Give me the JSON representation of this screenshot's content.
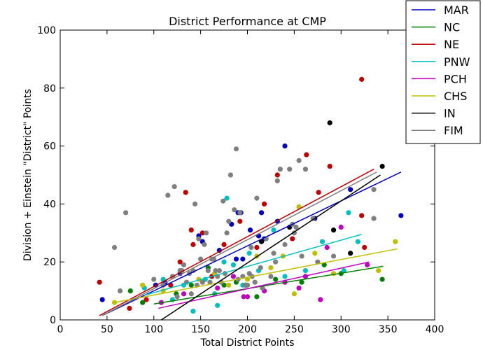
{
  "chart_data": {
    "type": "scatter",
    "title": "District Performance at CMP",
    "xlabel": "Total District Points",
    "ylabel": "Division + Einstein \"District\" Points",
    "xlim": [
      0,
      400
    ],
    "ylim": [
      0,
      100
    ],
    "xticks": [
      0,
      50,
      100,
      150,
      200,
      250,
      300,
      350,
      400
    ],
    "yticks": [
      0,
      20,
      40,
      60,
      80,
      100
    ],
    "grid": false,
    "legend_position": "top-right",
    "series": [
      {
        "name": "MAR",
        "color": "#0000bf",
        "points": [
          [
            45,
            7
          ],
          [
            102,
            12
          ],
          [
            112,
            13
          ],
          [
            128,
            16
          ],
          [
            148,
            29
          ],
          [
            152,
            27
          ],
          [
            170,
            24
          ],
          [
            183,
            33
          ],
          [
            188,
            21
          ],
          [
            190,
            37
          ],
          [
            193,
            37
          ],
          [
            195,
            21
          ],
          [
            203,
            31
          ],
          [
            212,
            29
          ],
          [
            215,
            37
          ],
          [
            218,
            28
          ],
          [
            232,
            34
          ],
          [
            240,
            60
          ],
          [
            272,
            35
          ],
          [
            310,
            45
          ],
          [
            364,
            36
          ]
        ],
        "trend": {
          "x": [
            45,
            364
          ],
          "y": [
            1.5,
            51
          ]
        }
      },
      {
        "name": "NC",
        "color": "#007f00",
        "points": [
          [
            75,
            10
          ],
          [
            88,
            6
          ],
          [
            124,
            9
          ],
          [
            140,
            12
          ],
          [
            158,
            18
          ],
          [
            175,
            12
          ],
          [
            188,
            13
          ],
          [
            198,
            12
          ],
          [
            210,
            8
          ],
          [
            230,
            14
          ],
          [
            258,
            13
          ],
          [
            282,
            19
          ],
          [
            300,
            16
          ],
          [
            344,
            14
          ]
        ],
        "trend": {
          "x": [
            100,
            345
          ],
          "y": [
            5.5,
            18.5
          ]
        }
      },
      {
        "name": "NE",
        "color": "#bf0000",
        "points": [
          [
            42,
            13
          ],
          [
            74,
            4
          ],
          [
            92,
            7
          ],
          [
            118,
            12
          ],
          [
            128,
            20
          ],
          [
            134,
            44
          ],
          [
            140,
            31
          ],
          [
            142,
            26
          ],
          [
            148,
            28
          ],
          [
            152,
            30
          ],
          [
            162,
            15
          ],
          [
            175,
            26
          ],
          [
            192,
            34
          ],
          [
            210,
            25
          ],
          [
            218,
            40
          ],
          [
            232,
            50
          ],
          [
            248,
            28
          ],
          [
            263,
            57
          ],
          [
            276,
            44
          ],
          [
            288,
            53
          ],
          [
            322,
            36
          ],
          [
            322,
            83
          ],
          [
            325,
            25
          ]
        ],
        "trend": {
          "x": [
            42,
            335
          ],
          "y": [
            1.5,
            52
          ]
        }
      },
      {
        "name": "PNW",
        "color": "#00bfbf",
        "points": [
          [
            90,
            11
          ],
          [
            110,
            14
          ],
          [
            120,
            7
          ],
          [
            132,
            12
          ],
          [
            142,
            3
          ],
          [
            155,
            14
          ],
          [
            165,
            9
          ],
          [
            168,
            5
          ],
          [
            175,
            20
          ],
          [
            178,
            42
          ],
          [
            185,
            19
          ],
          [
            195,
            12
          ],
          [
            202,
            23
          ],
          [
            212,
            17
          ],
          [
            228,
            31
          ],
          [
            240,
            15
          ],
          [
            255,
            39
          ],
          [
            262,
            17
          ],
          [
            280,
            27
          ],
          [
            303,
            17
          ],
          [
            308,
            37
          ],
          [
            318,
            27
          ]
        ],
        "trend": {
          "x": [
            90,
            322
          ],
          "y": [
            8.5,
            29.5
          ]
        }
      },
      {
        "name": "PCH",
        "color": "#bf00bf",
        "points": [
          [
            108,
            6
          ],
          [
            132,
            9
          ],
          [
            152,
            13
          ],
          [
            168,
            11
          ],
          [
            185,
            15
          ],
          [
            196,
            8
          ],
          [
            200,
            8
          ],
          [
            218,
            10
          ],
          [
            240,
            13
          ],
          [
            255,
            11
          ],
          [
            262,
            15
          ],
          [
            278,
            7
          ],
          [
            285,
            25
          ],
          [
            300,
            32
          ],
          [
            328,
            19
          ]
        ],
        "trend": {
          "x": [
            105,
            330
          ],
          "y": [
            4,
            20
          ]
        }
      },
      {
        "name": "CHS",
        "color": "#bfbf00",
        "points": [
          [
            58,
            6
          ],
          [
            88,
            12
          ],
          [
            110,
            10
          ],
          [
            148,
            14
          ],
          [
            165,
            16
          ],
          [
            180,
            12
          ],
          [
            200,
            14
          ],
          [
            210,
            22
          ],
          [
            225,
            18
          ],
          [
            238,
            22
          ],
          [
            250,
            9
          ],
          [
            255,
            39
          ],
          [
            272,
            23
          ],
          [
            292,
            16
          ],
          [
            340,
            17
          ],
          [
            358,
            27
          ]
        ],
        "trend": {
          "x": [
            58,
            360
          ],
          "y": [
            6,
            24.5
          ]
        }
      },
      {
        "name": "IN",
        "color": "#000000",
        "points": [
          [
            198,
            12
          ],
          [
            215,
            27
          ],
          [
            245,
            32
          ],
          [
            288,
            68
          ],
          [
            292,
            31
          ],
          [
            310,
            23
          ],
          [
            344,
            53
          ]
        ],
        "trend": {
          "x": [
            108,
            342
          ],
          "y": [
            0,
            50
          ]
        }
      },
      {
        "name": "FIM",
        "color": "#7f7f7f",
        "points": [
          [
            58,
            25
          ],
          [
            64,
            10
          ],
          [
            70,
            37
          ],
          [
            100,
            14
          ],
          [
            110,
            12
          ],
          [
            115,
            43
          ],
          [
            120,
            15
          ],
          [
            122,
            46
          ],
          [
            125,
            8
          ],
          [
            128,
            17
          ],
          [
            130,
            17
          ],
          [
            132,
            19
          ],
          [
            135,
            13
          ],
          [
            138,
            16
          ],
          [
            140,
            9
          ],
          [
            142,
            17
          ],
          [
            144,
            40
          ],
          [
            146,
            12
          ],
          [
            148,
            28
          ],
          [
            150,
            21
          ],
          [
            152,
            13
          ],
          [
            154,
            26
          ],
          [
            156,
            30
          ],
          [
            158,
            17
          ],
          [
            160,
            13
          ],
          [
            162,
            21
          ],
          [
            164,
            21
          ],
          [
            166,
            17
          ],
          [
            168,
            15
          ],
          [
            170,
            17
          ],
          [
            172,
            13
          ],
          [
            174,
            41
          ],
          [
            176,
            16
          ],
          [
            178,
            30
          ],
          [
            180,
            34
          ],
          [
            182,
            50
          ],
          [
            186,
            38
          ],
          [
            188,
            59
          ],
          [
            190,
            14
          ],
          [
            192,
            37
          ],
          [
            195,
            15
          ],
          [
            198,
            12
          ],
          [
            200,
            12
          ],
          [
            202,
            16
          ],
          [
            204,
            25
          ],
          [
            205,
            15
          ],
          [
            208,
            13
          ],
          [
            210,
            42
          ],
          [
            214,
            18
          ],
          [
            216,
            11
          ],
          [
            220,
            28
          ],
          [
            225,
            15
          ],
          [
            228,
            23
          ],
          [
            230,
            20
          ],
          [
            232,
            48
          ],
          [
            235,
            52
          ],
          [
            240,
            26
          ],
          [
            245,
            52
          ],
          [
            248,
            33
          ],
          [
            250,
            30
          ],
          [
            252,
            32
          ],
          [
            255,
            55
          ],
          [
            258,
            22
          ],
          [
            262,
            52
          ],
          [
            270,
            35
          ],
          [
            275,
            20
          ],
          [
            292,
            22
          ],
          [
            335,
            35
          ],
          [
            335,
            45
          ]
        ],
        "trend": {
          "x": [
            45,
            338
          ],
          "y": [
            1.5,
            51
          ]
        }
      }
    ]
  }
}
